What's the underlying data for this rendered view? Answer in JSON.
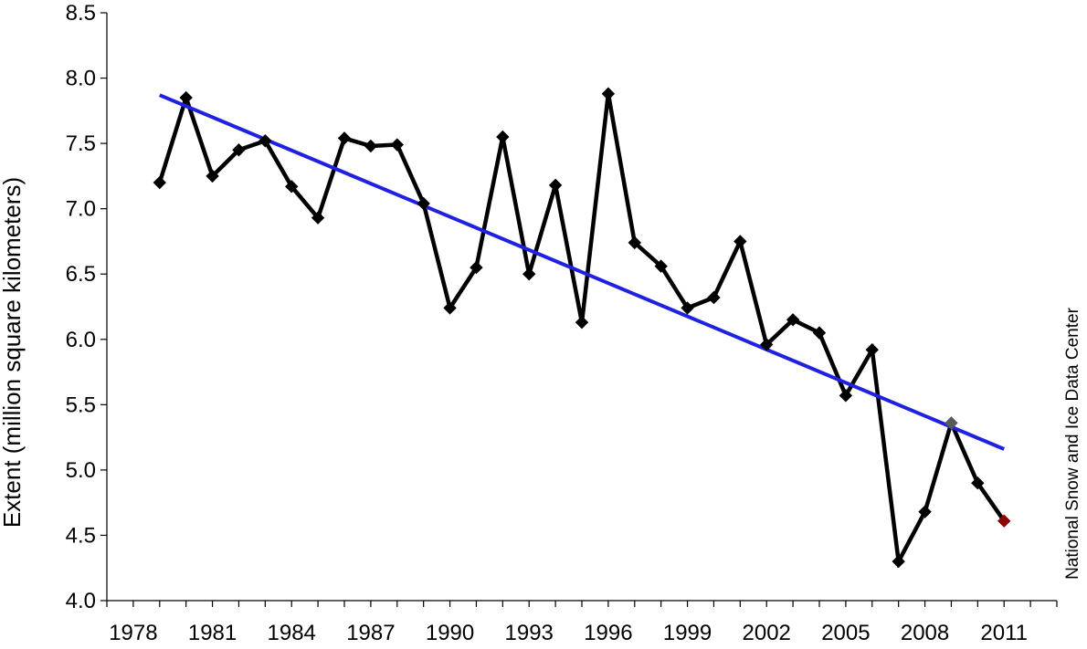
{
  "chart_data": {
    "type": "line",
    "title": "",
    "xlabel": "",
    "ylabel": "Extent (million square kilometers)",
    "credit": "National Snow and Ice Data Center",
    "xlim": [
      1977,
      2013
    ],
    "ylim": [
      4.0,
      8.5
    ],
    "x_ticks": [
      1978,
      1981,
      1984,
      1987,
      1990,
      1993,
      1996,
      1999,
      2002,
      2005,
      2008,
      2011
    ],
    "y_ticks": [
      4.0,
      4.5,
      5.0,
      5.5,
      6.0,
      6.5,
      7.0,
      7.5,
      8.0,
      8.5
    ],
    "y_tick_labels": [
      "4.0",
      "4.5",
      "5.0",
      "5.5",
      "6.0",
      "6.5",
      "7.0",
      "7.5",
      "8.0",
      "8.5"
    ],
    "grid": false,
    "series": [
      {
        "type": "line",
        "color": "#000000",
        "marker": "diamond",
        "x": [
          1979,
          1980,
          1981,
          1982,
          1983,
          1984,
          1985,
          1986,
          1987,
          1988,
          1989,
          1990,
          1991,
          1992,
          1993,
          1994,
          1995,
          1996,
          1997,
          1998,
          1999,
          2000,
          2001,
          2002,
          2003,
          2004,
          2005,
          2006,
          2007,
          2008,
          2009,
          2010,
          2011
        ],
        "values": [
          7.2,
          7.85,
          7.25,
          7.45,
          7.52,
          7.17,
          6.93,
          7.54,
          7.48,
          7.49,
          7.04,
          6.24,
          6.55,
          7.55,
          6.5,
          7.18,
          6.13,
          7.88,
          6.74,
          6.56,
          6.24,
          6.32,
          6.75,
          5.96,
          6.15,
          6.05,
          5.57,
          5.92,
          4.3,
          4.68,
          5.36,
          4.9,
          4.61
        ],
        "highlight": [
          {
            "x": 2009,
            "color": "#5a5a5a"
          },
          {
            "x": 2011,
            "color": "#8b0000"
          }
        ]
      },
      {
        "type": "trend",
        "color": "#2020e0",
        "x": [
          1979,
          2011
        ],
        "values": [
          7.87,
          5.16
        ]
      }
    ]
  }
}
